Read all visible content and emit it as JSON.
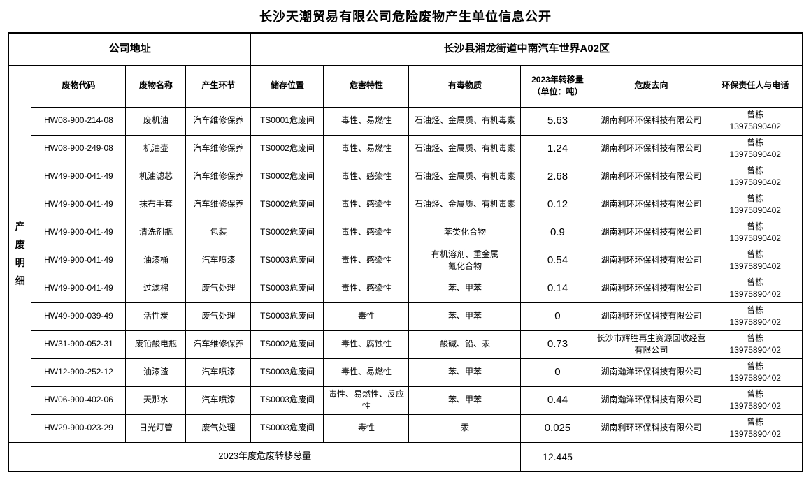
{
  "page": {
    "title": "长沙天潮贸易有限公司危险废物产生单位信息公开"
  },
  "company": {
    "address_label": "公司地址",
    "address_value": "长沙县湘龙街道中南汽车世界A02区"
  },
  "table": {
    "side_label": "产废明细",
    "columns": [
      "废物代码",
      "废物名称",
      "产生环节",
      "储存位置",
      "危害特性",
      "有毒物质",
      "2023年转移量\n（单位：吨）",
      "危废去向",
      "环保责任人与电话"
    ],
    "rows": [
      {
        "code": "HW08-900-214-08",
        "name": "废机油",
        "stage": "汽车维修保养",
        "storage": "TS0001危废间",
        "hazard": "毒性、易燃性",
        "toxic": "石油烃、金属质、有机毒素",
        "amount": "5.63",
        "destination": "湖南利环环保科技有限公司",
        "contact_name": "曾栋",
        "contact_phone": "13975890402"
      },
      {
        "code": "HW08-900-249-08",
        "name": "机油壶",
        "stage": "汽车维修保养",
        "storage": "TS0002危废间",
        "hazard": "毒性、易燃性",
        "toxic": "石油烃、金属质、有机毒素",
        "amount": "1.24",
        "destination": "湖南利环环保科技有限公司",
        "contact_name": "曾栋",
        "contact_phone": "13975890402"
      },
      {
        "code": "HW49-900-041-49",
        "name": "机油滤芯",
        "stage": "汽车维修保养",
        "storage": "TS0002危废间",
        "hazard": "毒性、感染性",
        "toxic": "石油烃、金属质、有机毒素",
        "amount": "2.68",
        "destination": "湖南利环环保科技有限公司",
        "contact_name": "曾栋",
        "contact_phone": "13975890402"
      },
      {
        "code": "HW49-900-041-49",
        "name": "抹布手套",
        "stage": "汽车维修保养",
        "storage": "TS0002危废间",
        "hazard": "毒性、感染性",
        "toxic": "石油烃、金属质、有机毒素",
        "amount": "0.12",
        "destination": "湖南利环环保科技有限公司",
        "contact_name": "曾栋",
        "contact_phone": "13975890402"
      },
      {
        "code": "HW49-900-041-49",
        "name": "清洗剂瓶",
        "stage": "包装",
        "storage": "TS0002危废间",
        "hazard": "毒性、感染性",
        "toxic": "苯类化合物",
        "amount": "0.9",
        "destination": "湖南利环环保科技有限公司",
        "contact_name": "曾栋",
        "contact_phone": "13975890402"
      },
      {
        "code": "HW49-900-041-49",
        "name": "油漆桶",
        "stage": "汽车喷漆",
        "storage": "TS0003危废间",
        "hazard": "毒性、感染性",
        "toxic": "有机溶剂、重金属\n氰化合物",
        "amount": "0.54",
        "destination": "湖南利环环保科技有限公司",
        "contact_name": "曾栋",
        "contact_phone": "13975890402"
      },
      {
        "code": "HW49-900-041-49",
        "name": "过滤棉",
        "stage": "废气处理",
        "storage": "TS0003危废间",
        "hazard": "毒性、感染性",
        "toxic": "苯、甲苯",
        "amount": "0.14",
        "destination": "湖南利环环保科技有限公司",
        "contact_name": "曾栋",
        "contact_phone": "13975890402"
      },
      {
        "code": "HW49-900-039-49",
        "name": "活性炭",
        "stage": "废气处理",
        "storage": "TS0003危废间",
        "hazard": "毒性",
        "toxic": "苯、甲苯",
        "amount": "0",
        "destination": "湖南利环环保科技有限公司",
        "contact_name": "曾栋",
        "contact_phone": "13975890402"
      },
      {
        "code": "HW31-900-052-31",
        "name": "废铅酸电瓶",
        "stage": "汽车维修保养",
        "storage": "TS0002危废间",
        "hazard": "毒性、腐蚀性",
        "toxic": "酸碱、铅、汞",
        "amount": "0.73",
        "destination": "长沙市辉胜再生资源回收经营有限公司",
        "contact_name": "曾栋",
        "contact_phone": "13975890402"
      },
      {
        "code": "HW12-900-252-12",
        "name": "油漆渣",
        "stage": "汽车喷漆",
        "storage": "TS0003危废间",
        "hazard": "毒性、易燃性",
        "toxic": "苯、甲苯",
        "amount": "0",
        "destination": "湖南瀚洋环保科技有限公司",
        "contact_name": "曾栋",
        "contact_phone": "13975890402"
      },
      {
        "code": "HW06-900-402-06",
        "name": "天那水",
        "stage": "汽车喷漆",
        "storage": "TS0003危废间",
        "hazard": "毒性、易燃性、反应性",
        "toxic": "苯、甲苯",
        "amount": "0.44",
        "destination": "湖南瀚洋环保科技有限公司",
        "contact_name": "曾栋",
        "contact_phone": "13975890402"
      },
      {
        "code": "HW29-900-023-29",
        "name": "日光灯管",
        "stage": "废气处理",
        "storage": "TS0003危废间",
        "hazard": "毒性",
        "toxic": "汞",
        "amount": "0.025",
        "destination": "湖南利环环保科技有限公司",
        "contact_name": "曾栋",
        "contact_phone": "13975890402"
      }
    ],
    "footer": {
      "label": "2023年度危废转移总量",
      "total": "12.445"
    }
  }
}
